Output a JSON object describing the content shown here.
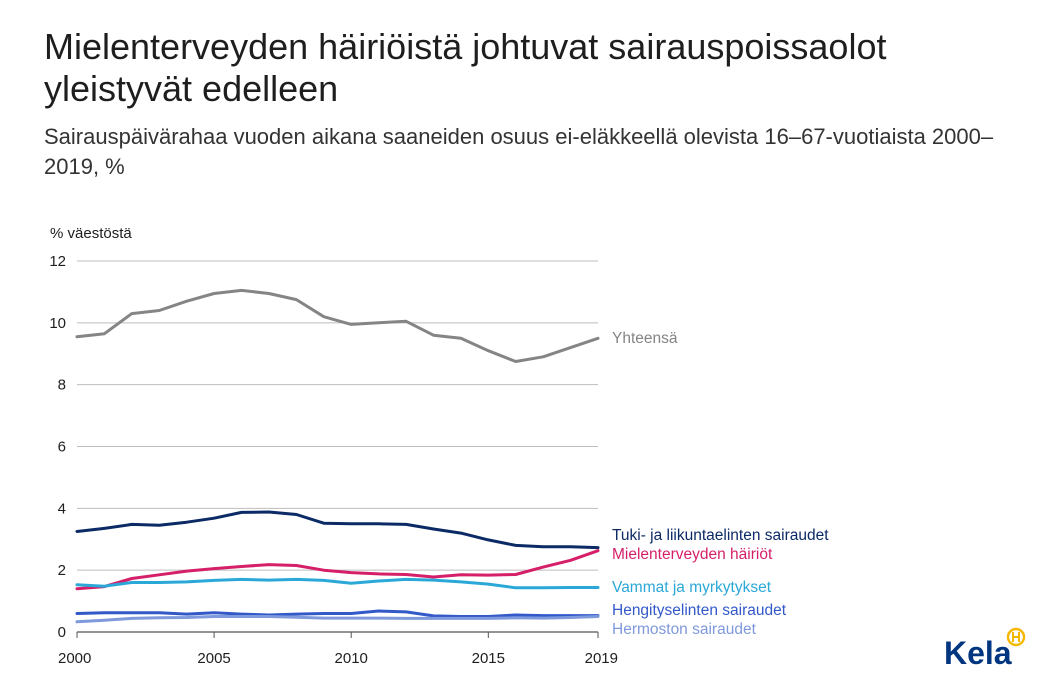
{
  "header": {
    "title": "Mielenterveyden häiriöistä johtuvat sairauspoissaolot yleistyvät edelleen",
    "subtitle": "Sairauspäivärahaa vuoden aikana saaneiden osuus ei-eläkkeellä olevista 16–67-vuotiaista 2000–2019, %"
  },
  "logo": {
    "text": "Kela",
    "icon": "kela-emblem-icon",
    "color": "#003580",
    "accent": "#f5b800"
  },
  "chart_data": {
    "type": "line",
    "title": "Mielenterveyden häiriöistä johtuvat sairauspoissaolot yleistyvät edelleen",
    "subtitle": "Sairauspäivärahaa vuoden aikana saaneiden osuus ei-eläkkeellä olevista 16–67-vuotiaista 2000–2019, %",
    "ylabel": "% väestöstä",
    "xlabel": "",
    "ylim": [
      0,
      12
    ],
    "xlim": [
      2000,
      2019
    ],
    "yticks": [
      0,
      2,
      4,
      6,
      8,
      10,
      12
    ],
    "xticks": [
      2000,
      2005,
      2010,
      2015,
      2019
    ],
    "grid": true,
    "legend": "line-end labels",
    "x": [
      2000,
      2001,
      2002,
      2003,
      2004,
      2005,
      2006,
      2007,
      2008,
      2009,
      2010,
      2011,
      2012,
      2013,
      2014,
      2015,
      2016,
      2017,
      2018,
      2019
    ],
    "series": [
      {
        "name": "Yhteensä",
        "color": "#858585",
        "values": [
          9.55,
          9.65,
          10.3,
          10.4,
          10.7,
          10.95,
          11.05,
          10.95,
          10.75,
          10.2,
          9.95,
          10.0,
          10.05,
          9.6,
          9.5,
          9.1,
          8.75,
          8.9,
          9.2,
          9.5
        ]
      },
      {
        "name": "Tuki- ja liikuntaelinten sairaudet",
        "color": "#0c2a66",
        "values": [
          3.25,
          3.35,
          3.48,
          3.45,
          3.55,
          3.68,
          3.87,
          3.88,
          3.8,
          3.52,
          3.5,
          3.5,
          3.48,
          3.33,
          3.2,
          2.98,
          2.8,
          2.76,
          2.76,
          2.73
        ]
      },
      {
        "name": "Mielenterveyden häiriöt",
        "color": "#d61f69",
        "values": [
          1.4,
          1.47,
          1.73,
          1.85,
          1.97,
          2.05,
          2.12,
          2.18,
          2.15,
          2.0,
          1.92,
          1.88,
          1.86,
          1.78,
          1.85,
          1.84,
          1.86,
          2.1,
          2.32,
          2.63
        ]
      },
      {
        "name": "Vammat ja myrkytykset",
        "color": "#2aa8d8",
        "values": [
          1.53,
          1.48,
          1.6,
          1.6,
          1.62,
          1.67,
          1.7,
          1.68,
          1.7,
          1.67,
          1.58,
          1.65,
          1.7,
          1.68,
          1.62,
          1.55,
          1.43,
          1.43,
          1.44,
          1.44
        ]
      },
      {
        "name": "Hengityselinten sairaudet",
        "color": "#3359c9",
        "values": [
          0.6,
          0.62,
          0.62,
          0.62,
          0.58,
          0.62,
          0.58,
          0.55,
          0.58,
          0.6,
          0.6,
          0.68,
          0.65,
          0.52,
          0.5,
          0.5,
          0.55,
          0.53,
          0.53,
          0.53
        ]
      },
      {
        "name": "Hermoston sairaudet",
        "color": "#7e99dc",
        "values": [
          0.33,
          0.38,
          0.44,
          0.46,
          0.47,
          0.5,
          0.5,
          0.5,
          0.48,
          0.45,
          0.45,
          0.45,
          0.44,
          0.44,
          0.44,
          0.44,
          0.46,
          0.45,
          0.47,
          0.5
        ]
      }
    ]
  }
}
